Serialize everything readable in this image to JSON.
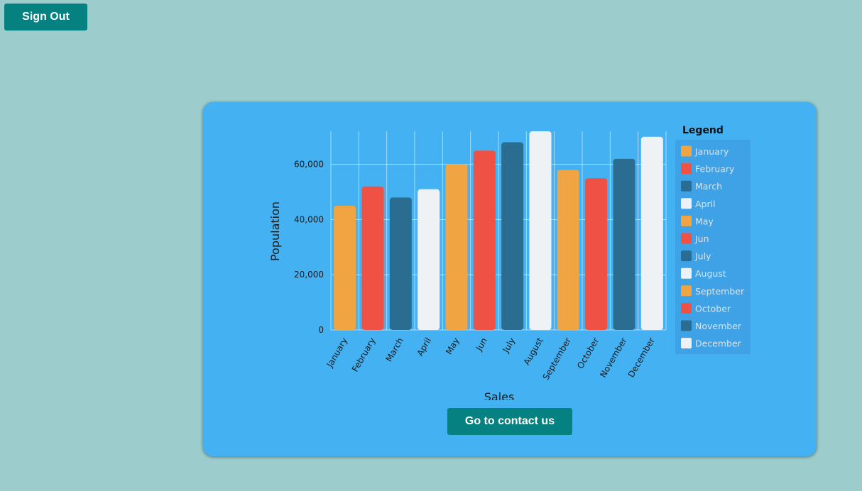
{
  "header": {
    "signout_label": "Sign Out"
  },
  "card": {
    "contact_label": "Go to contact us"
  },
  "colors": {
    "orange": "#f0a442",
    "red": "#ef5245",
    "navy": "#2b6c91",
    "white": "#eef2f5",
    "button": "#068181",
    "card": "#44b1f2",
    "background": "#9ccccc"
  },
  "chart_data": {
    "type": "bar",
    "xlabel": "Sales",
    "ylabel": "Population",
    "categories": [
      "January",
      "February",
      "March",
      "April",
      "May",
      "Jun",
      "July",
      "August",
      "September",
      "October",
      "November",
      "December"
    ],
    "values": [
      45000,
      52000,
      48000,
      51000,
      60000,
      65000,
      68000,
      72000,
      58000,
      55000,
      62000,
      70000
    ],
    "bar_colors": [
      "#f0a442",
      "#ef5245",
      "#2b6c91",
      "#eef2f5",
      "#f0a442",
      "#ef5245",
      "#2b6c91",
      "#eef2f5",
      "#f0a442",
      "#ef5245",
      "#2b6c91",
      "#eef2f5"
    ],
    "ylim": [
      0,
      72000
    ],
    "yticks": [
      0,
      20000,
      40000,
      60000
    ],
    "ytick_labels": [
      "0",
      "20,000",
      "40,000",
      "60,000"
    ],
    "grid": true,
    "legend": {
      "title": "Legend",
      "placement": "right",
      "entries": [
        "January",
        "February",
        "March",
        "April",
        "May",
        "Jun",
        "July",
        "August",
        "September",
        "October",
        "November",
        "December"
      ]
    }
  }
}
